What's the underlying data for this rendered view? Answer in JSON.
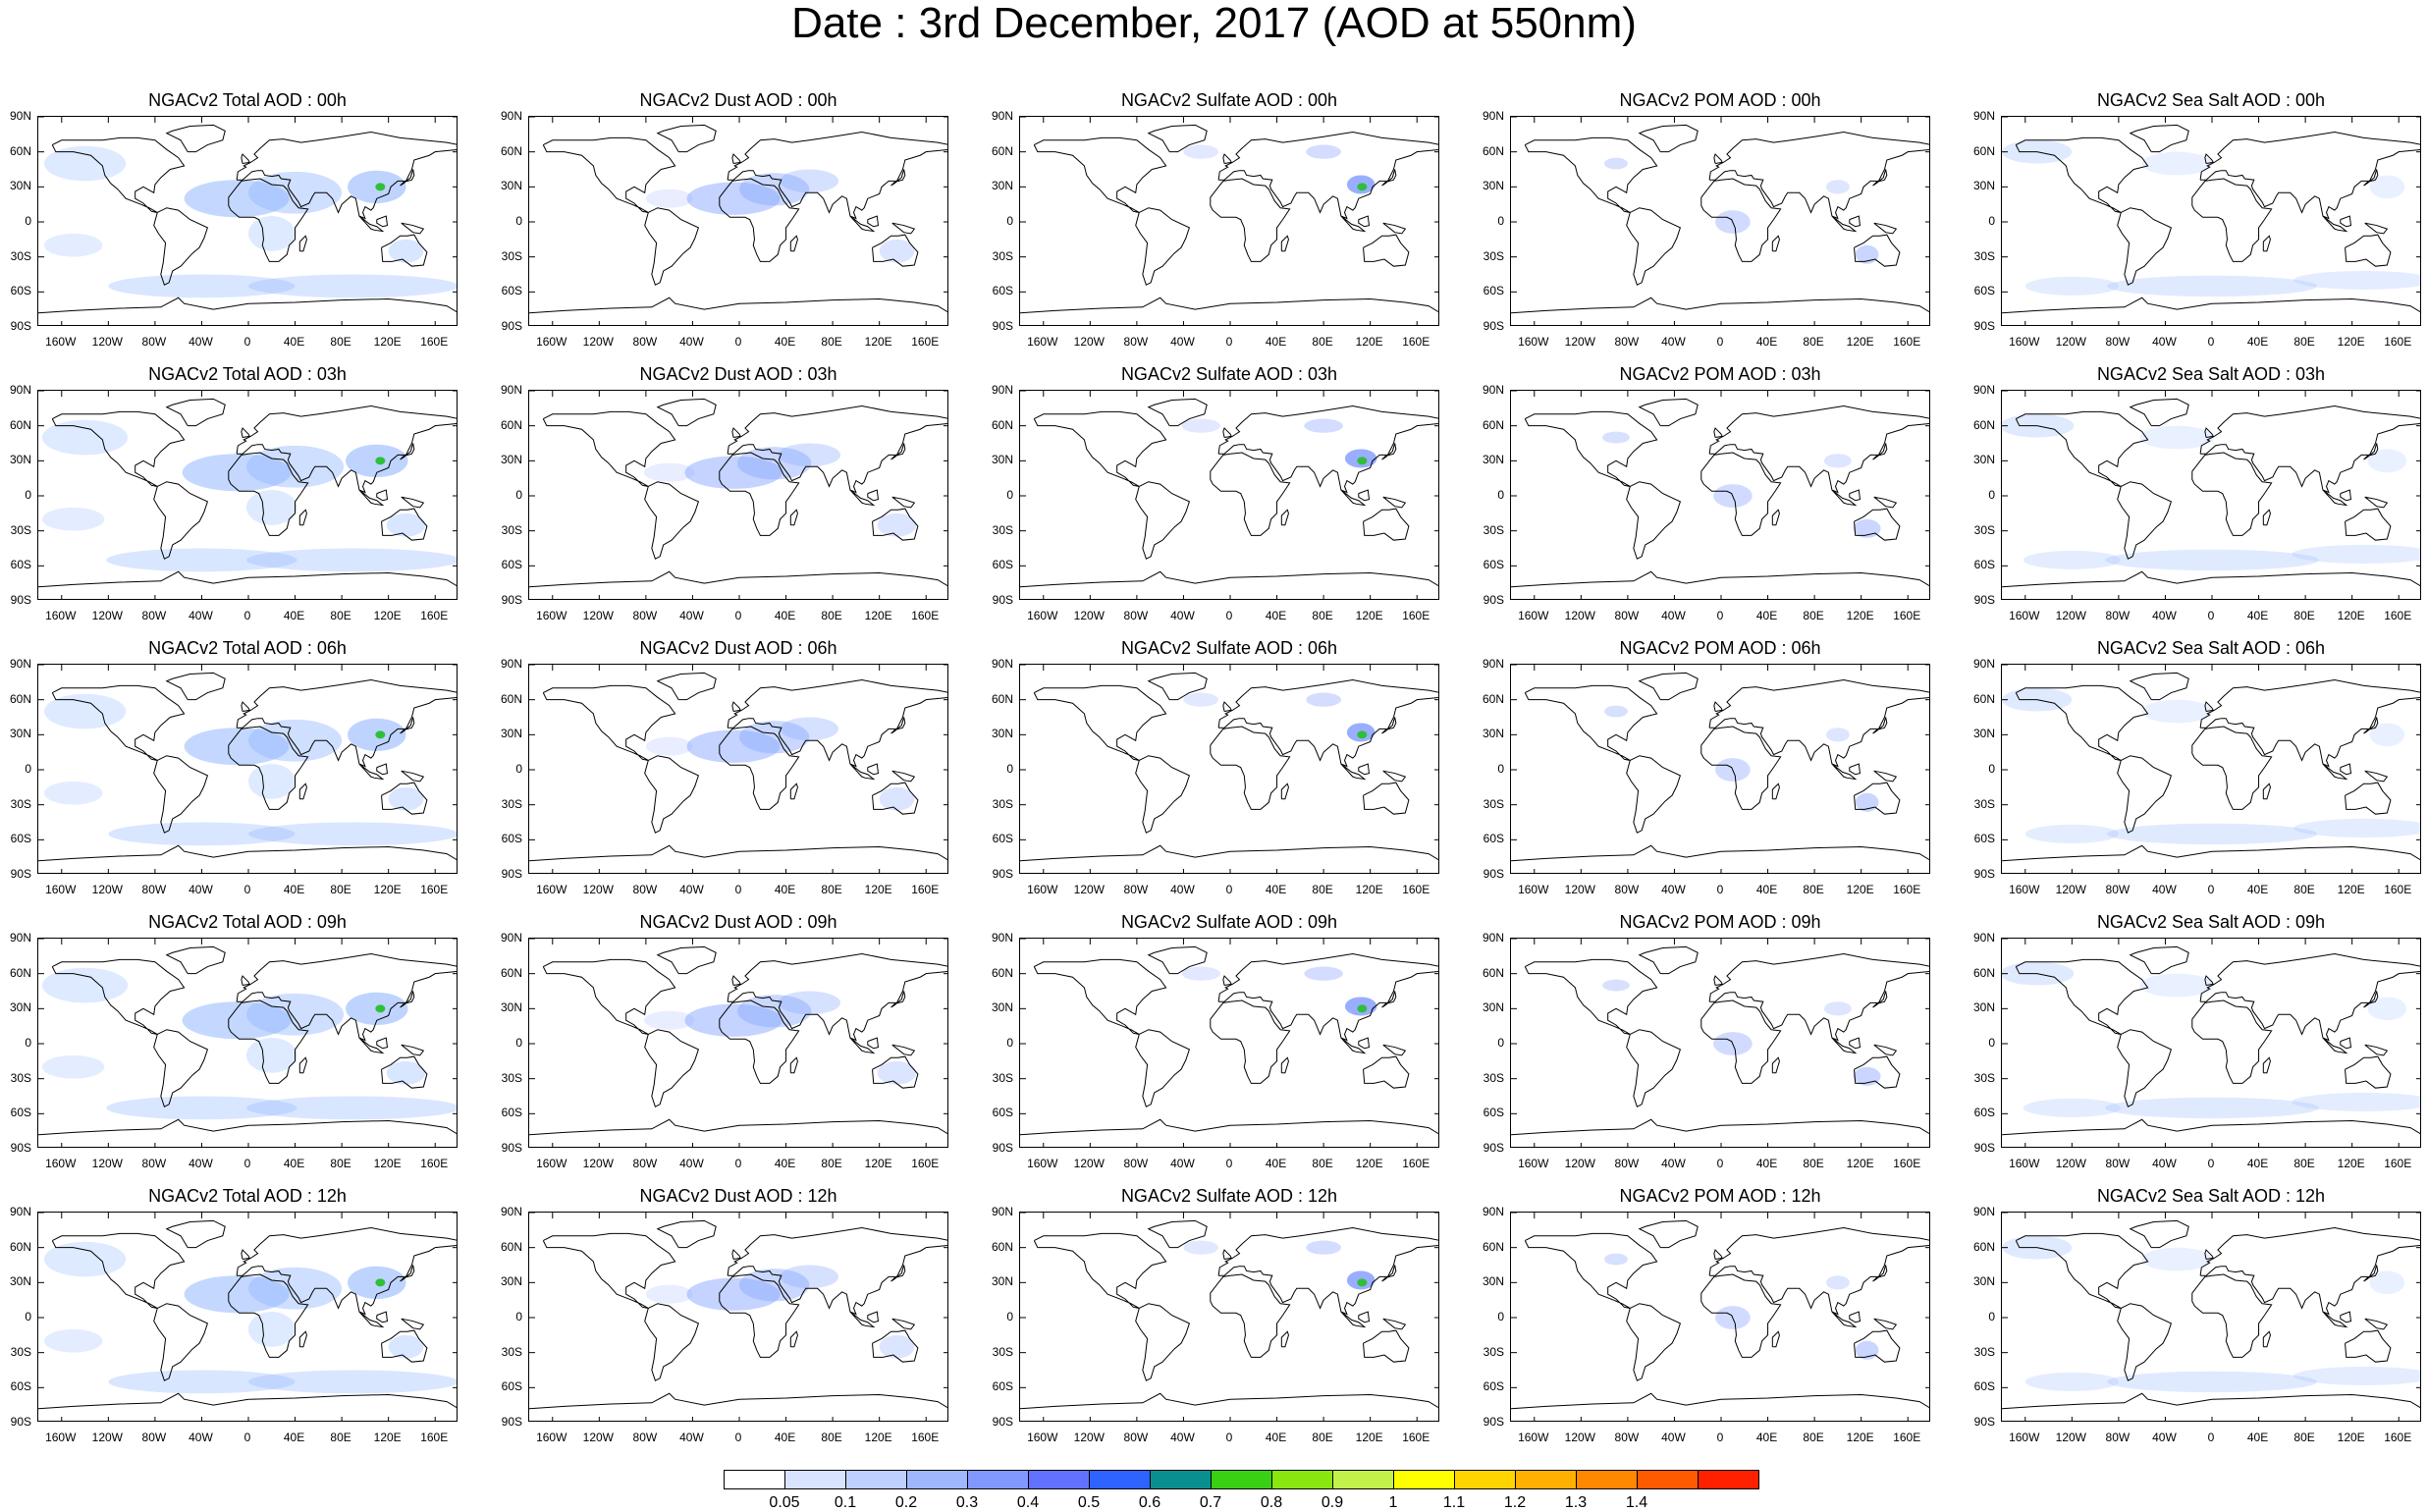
{
  "title": "Date : 3rd December, 2017 (AOD at 550nm)",
  "columns": [
    {
      "key": "total",
      "color": "#93b8ff"
    },
    {
      "key": "dust",
      "color": "#8aa8ff"
    },
    {
      "key": "sulfate",
      "color": "#6f8cff"
    },
    {
      "key": "pom",
      "color": "#7b98ff"
    },
    {
      "key": "seasalt",
      "color": "#a7c3ff"
    }
  ],
  "panels": [
    [
      "NGACv2 Total AOD : 00h",
      "NGACv2 Dust AOD : 00h",
      "NGACv2 Sulfate AOD : 00h",
      "NGACv2 POM AOD : 00h",
      "NGACv2 Sea Salt AOD : 00h"
    ],
    [
      "NGACv2 Total AOD : 03h",
      "NGACv2 Dust AOD : 03h",
      "NGACv2 Sulfate AOD : 03h",
      "NGACv2 POM AOD : 03h",
      "NGACv2 Sea Salt AOD : 03h"
    ],
    [
      "NGACv2 Total AOD : 06h",
      "NGACv2 Dust AOD : 06h",
      "NGACv2 Sulfate AOD : 06h",
      "NGACv2 POM AOD : 06h",
      "NGACv2 Sea Salt AOD : 06h"
    ],
    [
      "NGACv2 Total AOD : 09h",
      "NGACv2 Dust AOD : 09h",
      "NGACv2 Sulfate AOD : 09h",
      "NGACv2 POM AOD : 09h",
      "NGACv2 Sea Salt  AOD : 09h"
    ],
    [
      "NGACv2 Total AOD  : 12h",
      "NGACv2 Dust AOD : 12h",
      "NGACv2 Sulfate AOD : 12h",
      "NGACv2 POM  AOD : 12h",
      "NGACv2 Sea Salt  AOD : 12h"
    ]
  ],
  "lat_labels": [
    "90N",
    "60N",
    "30N",
    "0",
    "30S",
    "60S",
    "90S"
  ],
  "lon_labels": [
    "160W",
    "120W",
    "80W",
    "40W",
    "0",
    "40E",
    "80E",
    "120E",
    "160E"
  ],
  "lon_values": [
    -160,
    -120,
    -80,
    -40,
    0,
    40,
    80,
    120,
    160
  ],
  "lat_values": [
    90,
    60,
    30,
    0,
    -30,
    -60,
    -90
  ],
  "colorbar": {
    "colors": [
      "#ffffff",
      "#d7e3ff",
      "#bdd0ff",
      "#9fb7ff",
      "#8199ff",
      "#6272ff",
      "#2e63ff",
      "#0a8f8f",
      "#3acf14",
      "#8ae60f",
      "#c2f24a",
      "#ffff00",
      "#ffd400",
      "#ffb000",
      "#ff8800",
      "#ff5a00",
      "#ff2000"
    ],
    "labels": [
      "0.05",
      "0.1",
      "0.2",
      "0.3",
      "0.4",
      "0.5",
      "0.6",
      "0.7",
      "0.8",
      "0.9",
      "1",
      "1.1",
      "1.2",
      "1.3",
      "1.4"
    ]
  }
}
